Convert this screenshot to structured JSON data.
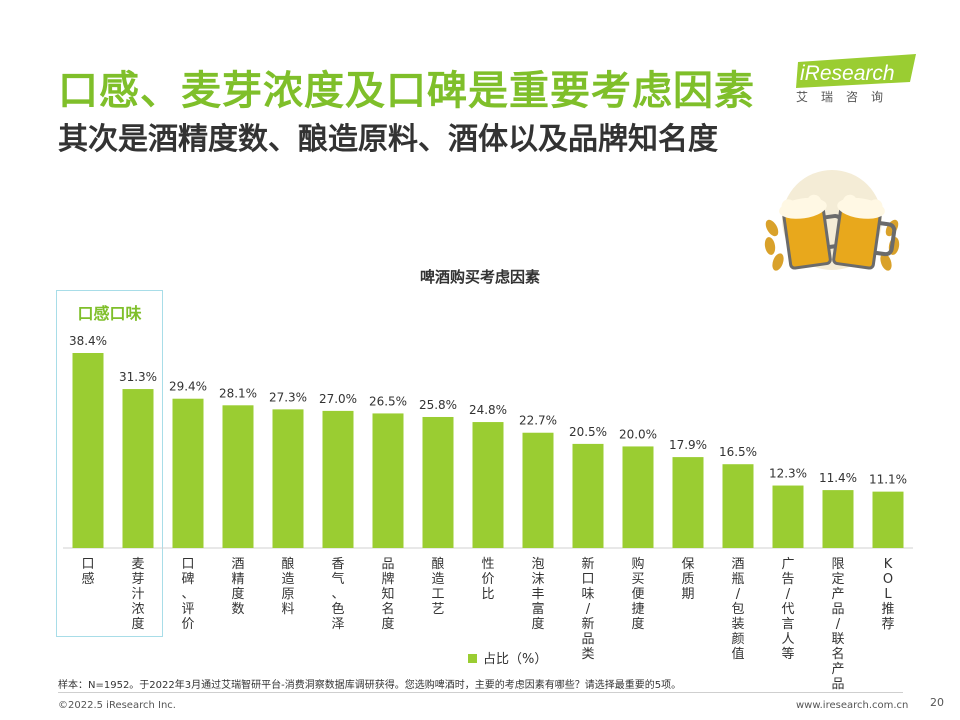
{
  "header": {
    "title": "口感、麦芽浓度及口碑是重要考虑因素",
    "subtitle": "其次是酒精度数、酿造原料、酒体以及品牌知名度"
  },
  "logo": {
    "brand": "iResearch",
    "cn": "艾瑞咨询"
  },
  "highlight": {
    "label": "口感口味"
  },
  "chart_data": {
    "type": "bar",
    "title": "啤酒购买考虑因素",
    "categories": [
      "口感",
      "麦芽汁浓度",
      "口碑、评价",
      "酒精度数",
      "酿造原料",
      "香气、色泽",
      "品牌知名度",
      "酿造工艺",
      "性价比",
      "泡沫丰富度",
      "新口味/新品类",
      "购买便捷度",
      "保质期",
      "酒瓶/包装颜值",
      "广告/代言人等",
      "限定产品/联名产品",
      "KOL推荐"
    ],
    "series": [
      {
        "name": "占比（%）",
        "values": [
          38.4,
          31.3,
          29.4,
          28.1,
          27.3,
          27.0,
          26.5,
          25.8,
          24.8,
          22.7,
          20.5,
          20.0,
          17.9,
          16.5,
          12.3,
          11.4,
          11.1
        ]
      }
    ],
    "value_labels": [
      "38.4%",
      "31.3%",
      "29.4%",
      "28.1%",
      "27.3%",
      "27.0%",
      "26.5%",
      "25.8%",
      "24.8%",
      "22.7%",
      "20.5%",
      "20.0%",
      "17.9%",
      "16.5%",
      "12.3%",
      "11.4%",
      "11.1%"
    ],
    "ylim": [
      0,
      40
    ],
    "grid": false,
    "legend": "bottom",
    "color": "#9acd32"
  },
  "footer": {
    "note": "样本：N=1952。于2022年3月通过艾瑞智研平台-消费洞察数据库调研获得。您选购啤酒时，主要的考虑因素有哪些？请选择最重要的5项。",
    "copyright": "©2022.5 iResearch Inc.",
    "website": "www.iresearch.com.cn",
    "page": "20"
  }
}
